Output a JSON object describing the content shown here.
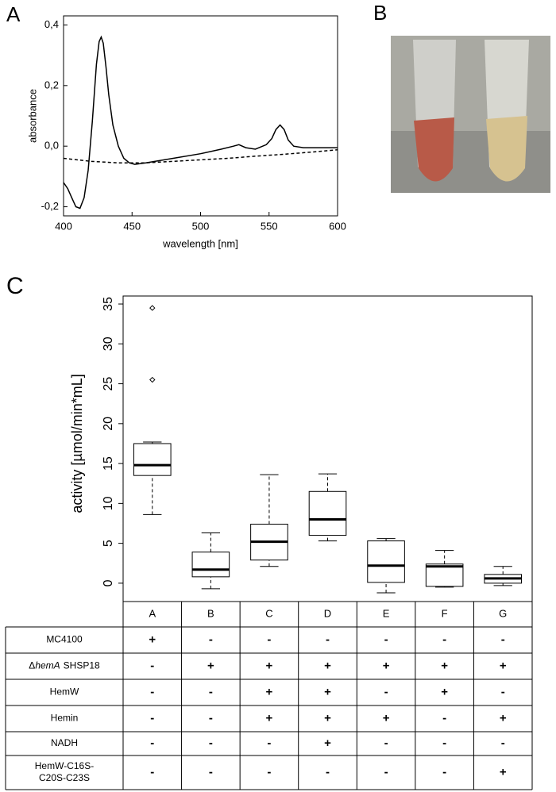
{
  "panel_labels": [
    "A",
    "B",
    "C"
  ],
  "chart_data": [
    {
      "type": "line",
      "xlabel": "wavelength [nm]",
      "ylabel": "absorbance",
      "xlim": [
        400,
        600
      ],
      "xticks": [
        400,
        450,
        500,
        550,
        600
      ],
      "ylim": [
        -0.23,
        0.43
      ],
      "yticks": [
        {
          "value": -0.2,
          "label": "-0,2"
        },
        {
          "value": 0,
          "label": "0,0"
        },
        {
          "value": 0.2,
          "label": "0,2"
        },
        {
          "value": 0.4,
          "label": "0,4"
        }
      ],
      "series": [
        {
          "color": "#000000",
          "line_style": "solid",
          "x": [
            400,
            403,
            406,
            409,
            412,
            415,
            418,
            421,
            424,
            426,
            427.5,
            429,
            431,
            433,
            436,
            440,
            444,
            448,
            452,
            460,
            480,
            500,
            515,
            524,
            528,
            533,
            540,
            548,
            552,
            555,
            558,
            561,
            564,
            568,
            575,
            590,
            600
          ],
          "values": [
            -0.12,
            -0.14,
            -0.17,
            -0.2,
            -0.205,
            -0.17,
            -0.08,
            0.08,
            0.27,
            0.345,
            0.36,
            0.34,
            0.26,
            0.17,
            0.07,
            0.0,
            -0.04,
            -0.055,
            -0.06,
            -0.055,
            -0.04,
            -0.025,
            -0.01,
            0.0,
            0.005,
            -0.005,
            -0.01,
            0.005,
            0.025,
            0.055,
            0.07,
            0.055,
            0.02,
            0.0,
            -0.005,
            -0.005,
            -0.005
          ]
        },
        {
          "color": "#000000",
          "line_style": "dashed",
          "x": [
            400,
            420,
            440,
            460,
            480,
            500,
            520,
            540,
            560,
            580,
            600
          ],
          "values": [
            -0.04,
            -0.05,
            -0.055,
            -0.055,
            -0.05,
            -0.045,
            -0.04,
            -0.033,
            -0.027,
            -0.02,
            -0.012
          ]
        }
      ]
    },
    {
      "type": "box",
      "ylabel": "activity [µmol/min*mL]",
      "categories": [
        "A",
        "B",
        "C",
        "D",
        "E",
        "F",
        "G"
      ],
      "ylim": [
        -2.3,
        36
      ],
      "yticks": [
        0,
        5,
        10,
        15,
        20,
        25,
        30,
        35
      ],
      "color": "#000000",
      "boxes": [
        {
          "whisker_low": 8.6,
          "q1": 13.5,
          "median": 14.8,
          "q3": 17.5,
          "whisker_high": 17.7,
          "outliers": [
            25.5,
            34.5
          ]
        },
        {
          "whisker_low": -0.7,
          "q1": 0.8,
          "median": 1.7,
          "q3": 3.9,
          "whisker_high": 6.3,
          "outliers": []
        },
        {
          "whisker_low": 2.1,
          "q1": 2.9,
          "median": 5.2,
          "q3": 7.4,
          "whisker_high": 13.6,
          "outliers": []
        },
        {
          "whisker_low": 5.3,
          "q1": 6.0,
          "median": 8.0,
          "q3": 11.5,
          "whisker_high": 13.7,
          "outliers": []
        },
        {
          "whisker_low": -1.2,
          "q1": 0.1,
          "median": 2.2,
          "q3": 5.3,
          "whisker_high": 5.6,
          "outliers": []
        },
        {
          "whisker_low": -0.5,
          "q1": -0.4,
          "median": 2.1,
          "q3": 2.4,
          "whisker_high": 4.1,
          "outliers": []
        },
        {
          "whisker_low": -0.3,
          "q1": 0.0,
          "median": 0.6,
          "q3": 1.1,
          "whisker_high": 2.1,
          "outliers": []
        }
      ]
    }
  ],
  "table": {
    "rows": [
      {
        "label": [
          "MC4100"
        ],
        "cells": [
          "+",
          "-",
          "-",
          "-",
          "-",
          "-",
          "-"
        ]
      },
      {
        "label": [
          "Δ",
          "hemA",
          "SHSP18"
        ],
        "cells": [
          "-",
          "+",
          "+",
          "+",
          "+",
          "+",
          "+"
        ]
      },
      {
        "label": [
          "HemW"
        ],
        "cells": [
          "-",
          "-",
          "+",
          "+",
          "-",
          "+",
          "-"
        ]
      },
      {
        "label": [
          "Hemin"
        ],
        "cells": [
          "-",
          "-",
          "+",
          "+",
          "+",
          "-",
          "+"
        ]
      },
      {
        "label": [
          "NADH"
        ],
        "cells": [
          "-",
          "-",
          "-",
          "+",
          "-",
          "-",
          "-"
        ]
      },
      {
        "label": [
          "HemW-C16S-",
          "C20S-C23S"
        ],
        "cells": [
          "-",
          "-",
          "-",
          "-",
          "-",
          "-",
          "+"
        ]
      }
    ]
  }
}
